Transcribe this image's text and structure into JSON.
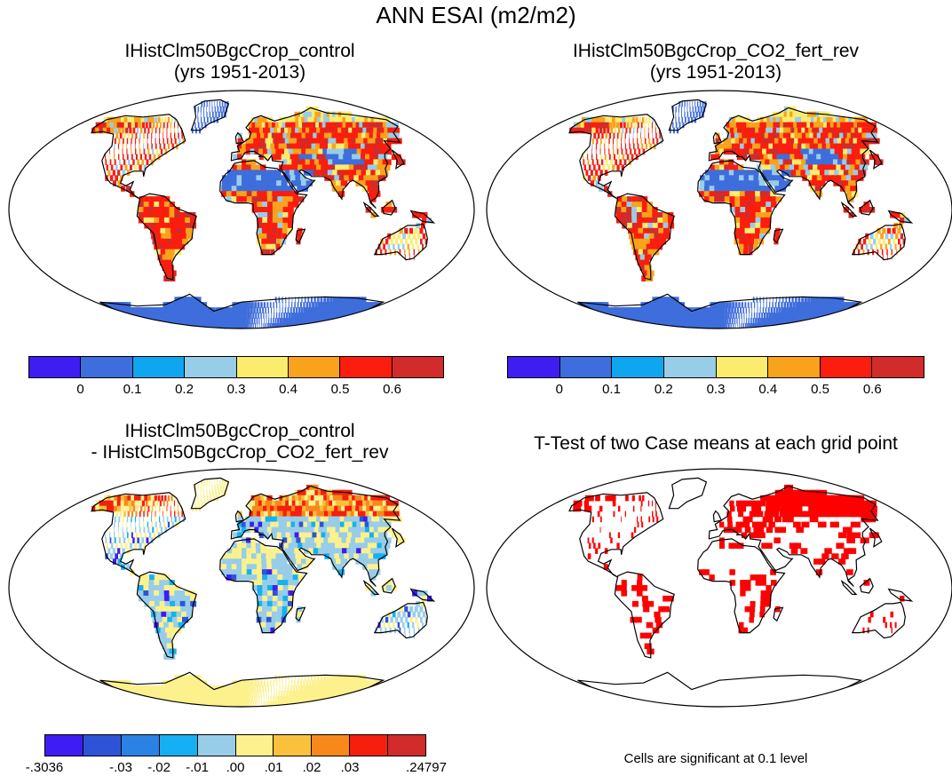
{
  "title": "ANN ESAI (m2/m2)",
  "colors": {
    "abs_scale": [
      "#3e1df2",
      "#3e6ddc",
      "#0fa6f0",
      "#98cde9",
      "#fcec6e",
      "#f9a21b",
      "#fb1d0d",
      "#d12b2b"
    ],
    "diff_scale": [
      "#3e1df2",
      "#2f53d7",
      "#2a83e4",
      "#15b0f2",
      "#98cde9",
      "#fcf18c",
      "#f9c13c",
      "#f9881a",
      "#f51f0d",
      "#d12b2b"
    ],
    "significant": "#ff0000",
    "land_low": "#3e6ddc"
  },
  "panels": {
    "top_left": {
      "line1": "IHistClm50BgcCrop_control",
      "line2": "(yrs 1951-2013)"
    },
    "top_right": {
      "line1": "IHistClm50BgcCrop_CO2_fert_rev",
      "line2": "(yrs 1951-2013)"
    },
    "bottom_left": {
      "line1": "IHistClm50BgcCrop_control",
      "line2": "- IHistClm50BgcCrop_CO2_fert_rev"
    },
    "bottom_right": {
      "line1": "T-Test of two Case means at each grid point"
    }
  },
  "colorbars": {
    "abs_ticks": [
      "0",
      "0.1",
      "0.2",
      "0.3",
      "0.4",
      "0.5",
      "0.6"
    ],
    "diff_ticks": [
      "-.3036",
      "-.03",
      "-.02",
      "-.01",
      ".00",
      ".01",
      ".02",
      ".03",
      ".24797"
    ]
  },
  "footnote": "Cells are significant at 0.1 level"
}
